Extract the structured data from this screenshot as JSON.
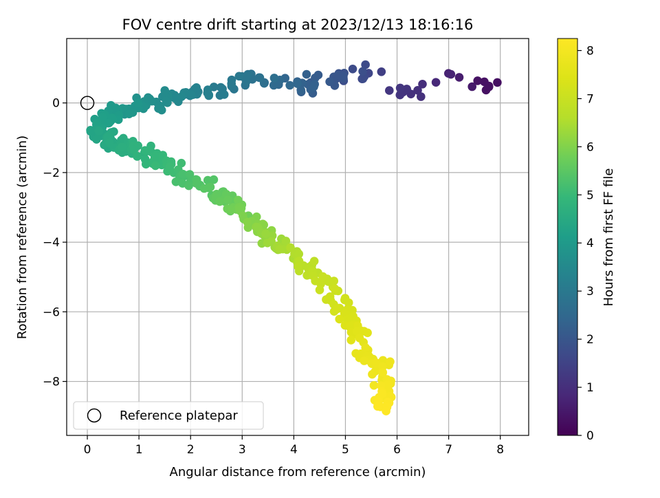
{
  "chart_data": {
    "type": "scatter",
    "title": "FOV centre drift starting at 2023/12/13 18:16:16",
    "xlabel": "Angular distance from reference (arcmin)",
    "ylabel": "Rotation from reference (arcmin)",
    "xlim": [
      -0.4,
      8.55
    ],
    "ylim": [
      -9.55,
      1.85
    ],
    "xticks": [
      0,
      1,
      2,
      3,
      4,
      5,
      6,
      7,
      8
    ],
    "yticks": [
      -8,
      -6,
      -4,
      -2,
      0
    ],
    "grid": true,
    "legend": {
      "placement": "lower-left",
      "entries": [
        "Reference platepar"
      ]
    },
    "reference_point": {
      "x": 0,
      "y": 0,
      "label": "Reference platepar"
    },
    "colorbar": {
      "label": "Hours from first FF file",
      "colormap": "viridis",
      "range": [
        0,
        8.25
      ],
      "ticks": [
        0,
        1,
        2,
        3,
        4,
        5,
        6,
        7,
        8
      ]
    },
    "anchors": [
      {
        "x": 8.1,
        "y": 0.5,
        "t": 0.2
      },
      {
        "x": 7.7,
        "y": 0.5,
        "t": 0.35
      },
      {
        "x": 6.97,
        "y": 0.9,
        "t": 0.75
      },
      {
        "x": 6.1,
        "y": 0.25,
        "t": 1.1
      },
      {
        "x": 5.8,
        "y": 0.8,
        "t": 1.3
      },
      {
        "x": 5.3,
        "y": 0.8,
        "t": 1.7
      },
      {
        "x": 4.8,
        "y": 0.7,
        "t": 2.0
      },
      {
        "x": 4.2,
        "y": 0.5,
        "t": 2.3
      },
      {
        "x": 3.6,
        "y": 0.7,
        "t": 2.6
      },
      {
        "x": 3.0,
        "y": 0.6,
        "t": 2.9
      },
      {
        "x": 2.3,
        "y": 0.3,
        "t": 3.2
      },
      {
        "x": 1.6,
        "y": 0.15,
        "t": 3.5
      },
      {
        "x": 1.0,
        "y": -0.05,
        "t": 3.8
      },
      {
        "x": 0.5,
        "y": -0.35,
        "t": 4.05
      },
      {
        "x": 0.15,
        "y": -0.8,
        "t": 4.3
      },
      {
        "x": 0.5,
        "y": -1.15,
        "t": 4.5
      },
      {
        "x": 1.0,
        "y": -1.4,
        "t": 4.75
      },
      {
        "x": 1.5,
        "y": -1.8,
        "t": 5.0
      },
      {
        "x": 2.0,
        "y": -2.2,
        "t": 5.3
      },
      {
        "x": 2.6,
        "y": -2.75,
        "t": 5.6
      },
      {
        "x": 3.0,
        "y": -3.2,
        "t": 5.9
      },
      {
        "x": 3.5,
        "y": -3.8,
        "t": 6.2
      },
      {
        "x": 4.0,
        "y": -4.4,
        "t": 6.55
      },
      {
        "x": 4.5,
        "y": -5.0,
        "t": 6.9
      },
      {
        "x": 4.9,
        "y": -5.8,
        "t": 7.2
      },
      {
        "x": 5.2,
        "y": -6.6,
        "t": 7.5
      },
      {
        "x": 5.6,
        "y": -7.4,
        "t": 7.8
      },
      {
        "x": 5.85,
        "y": -8.2,
        "t": 8.05
      },
      {
        "x": 5.7,
        "y": -8.7,
        "t": 8.25
      }
    ]
  }
}
